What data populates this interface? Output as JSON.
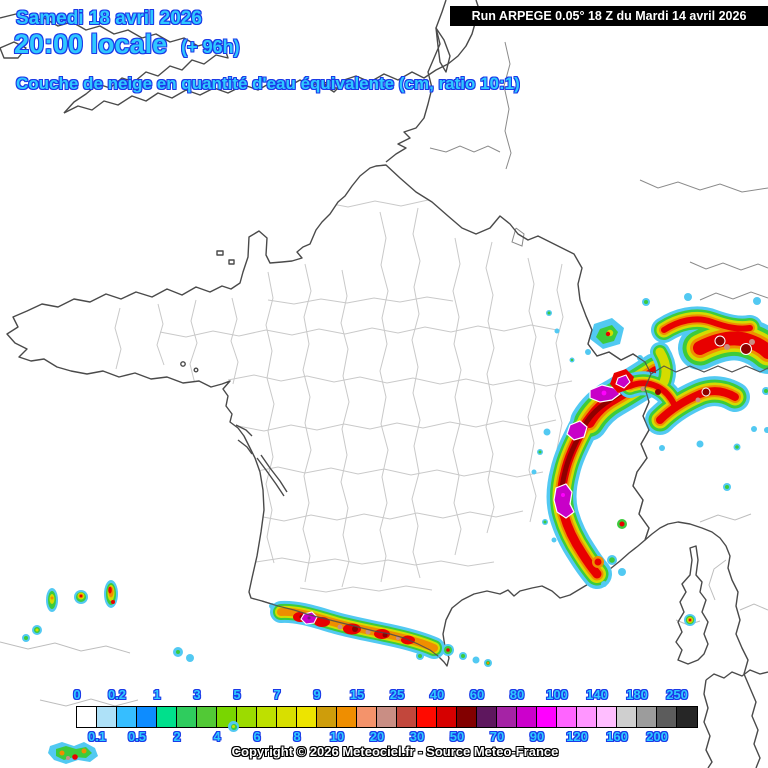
{
  "header": {
    "date_line": "Samedi 18 avril 2026",
    "time_line": "20:00 locale",
    "forecast_offset": "(+ 96h)",
    "run_info": "Run ARPEGE 0.05° 18 Z du Mardi 14 avril 2026",
    "subtitle": "Couche de neige en quantité d'eau équivalente (cm, ratio 10:1)"
  },
  "footer": {
    "copyright": "Copyright © 2026 Meteociel.fr - Source Meteo-France"
  },
  "colors": {
    "title_fill": "#2FC8FF",
    "title_outline": "#1A3AE8",
    "run_box_bg": "#000000",
    "run_box_text": "#FFFFFF",
    "coastline": "#4a4a4a",
    "department_lines": "#c9c9c9"
  },
  "legend": {
    "unit": "cm",
    "scale": [
      {
        "label": "0",
        "color": "#FFFFFF",
        "row": "top"
      },
      {
        "label": "0.1",
        "color": "#AEE1F8",
        "row": "bot"
      },
      {
        "label": "0.2",
        "color": "#36BEFF",
        "row": "top"
      },
      {
        "label": "0.5",
        "color": "#0D8CFF",
        "row": "bot"
      },
      {
        "label": "1",
        "color": "#00E08C",
        "row": "top"
      },
      {
        "label": "2",
        "color": "#2FCC5E",
        "row": "bot"
      },
      {
        "label": "3",
        "color": "#52C936",
        "row": "top"
      },
      {
        "label": "4",
        "color": "#79D600",
        "row": "bot"
      },
      {
        "label": "5",
        "color": "#9CDB00",
        "row": "top"
      },
      {
        "label": "6",
        "color": "#BEE000",
        "row": "bot"
      },
      {
        "label": "7",
        "color": "#D8DF00",
        "row": "top"
      },
      {
        "label": "8",
        "color": "#EDE400",
        "row": "bot"
      },
      {
        "label": "9",
        "color": "#CE9D0B",
        "row": "top"
      },
      {
        "label": "10",
        "color": "#EF8E00",
        "row": "bot"
      },
      {
        "label": "15",
        "color": "#F4936B",
        "row": "top"
      },
      {
        "label": "20",
        "color": "#C98E84",
        "row": "bot"
      },
      {
        "label": "25",
        "color": "#C2473C",
        "row": "top"
      },
      {
        "label": "30",
        "color": "#FF0A00",
        "row": "bot"
      },
      {
        "label": "40",
        "color": "#D60000",
        "row": "top"
      },
      {
        "label": "50",
        "color": "#820000",
        "row": "bot"
      },
      {
        "label": "60",
        "color": "#5E175E",
        "row": "top"
      },
      {
        "label": "70",
        "color": "#A523A5",
        "row": "bot"
      },
      {
        "label": "80",
        "color": "#CC00CC",
        "row": "top"
      },
      {
        "label": "90",
        "color": "#FF00FF",
        "row": "bot"
      },
      {
        "label": "100",
        "color": "#FF64FF",
        "row": "top"
      },
      {
        "label": "120",
        "color": "#FF96FF",
        "row": "bot"
      },
      {
        "label": "140",
        "color": "#FFBEFF",
        "row": "top"
      },
      {
        "label": "160",
        "color": "#CFCFCF",
        "row": "bot"
      },
      {
        "label": "180",
        "color": "#9C9C9C",
        "row": "top"
      },
      {
        "label": "200",
        "color": "#5C5C5C",
        "row": "bot"
      },
      {
        "label": "250",
        "color": "#262626",
        "row": "top"
      }
    ]
  }
}
